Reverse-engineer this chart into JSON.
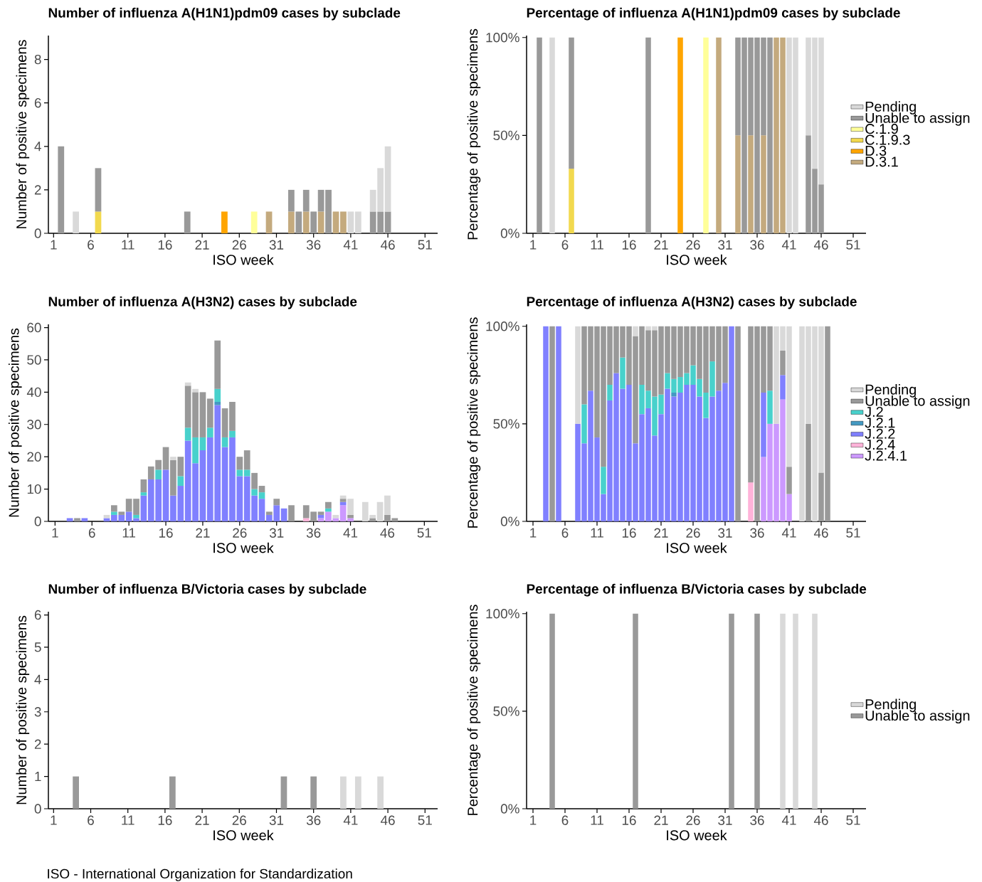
{
  "chart_data": [
    {
      "type": "bar",
      "title": "Number of influenza A(H1N1)pdm09 cases by subclade",
      "xlabel": "ISO week",
      "ylabel": "Number of positive specimens",
      "stacked": true,
      "xlim": [
        0.3,
        52.7
      ],
      "xticks": [
        1,
        6,
        11,
        16,
        21,
        26,
        31,
        36,
        41,
        46,
        51
      ],
      "ylim": [
        0,
        9.1
      ],
      "yticks": [
        0,
        2,
        4,
        6,
        8
      ],
      "x": [
        2,
        4,
        7,
        19,
        24,
        28,
        30,
        33,
        34,
        35,
        36,
        37,
        38,
        39,
        40,
        41,
        42,
        44,
        45,
        46
      ],
      "series": [
        {
          "color": "#c4aa7e",
          "values": [
            null,
            null,
            null,
            null,
            null,
            null,
            1,
            1,
            null,
            1,
            null,
            1,
            null,
            1,
            1,
            null,
            null,
            null,
            null,
            null
          ]
        },
        {
          "color": "#ffa500",
          "values": [
            null,
            null,
            null,
            null,
            1,
            null,
            null,
            null,
            null,
            null,
            null,
            null,
            null,
            null,
            null,
            null,
            null,
            null,
            null,
            null
          ]
        },
        {
          "color": "#f2d94e",
          "values": [
            null,
            null,
            1,
            null,
            null,
            null,
            null,
            null,
            null,
            null,
            null,
            null,
            null,
            null,
            null,
            null,
            null,
            null,
            null,
            null
          ]
        },
        {
          "color": "#ffff99",
          "values": [
            null,
            null,
            null,
            null,
            null,
            1,
            null,
            null,
            null,
            null,
            null,
            null,
            null,
            null,
            null,
            null,
            null,
            null,
            null,
            null
          ]
        },
        {
          "color": "#999999",
          "values": [
            4,
            null,
            2,
            1,
            null,
            null,
            null,
            1,
            1,
            1,
            1,
            1,
            2,
            null,
            null,
            null,
            null,
            1,
            1,
            1
          ]
        },
        {
          "color": "#d9d9d9",
          "values": [
            null,
            1,
            null,
            null,
            null,
            null,
            null,
            null,
            null,
            null,
            null,
            null,
            null,
            null,
            null,
            1,
            1,
            1,
            2,
            3
          ]
        }
      ]
    },
    {
      "type": "bar",
      "title": "Percentage of influenza A(H1N1)pdm09 cases by subclade",
      "xlabel": "ISO week",
      "ylabel": "Percentage of positive specimens",
      "stacked": true,
      "legend": "right",
      "xlim": [
        0,
        53
      ],
      "xticks": [
        1,
        6,
        11,
        16,
        21,
        26,
        31,
        36,
        41,
        46,
        51
      ],
      "ylim": [
        0,
        101
      ],
      "yticks": [
        {
          "value": 0,
          "label": "0%"
        },
        {
          "value": 50,
          "label": "50%"
        },
        {
          "value": 100,
          "label": "100%"
        }
      ],
      "x": [
        2,
        4,
        7,
        19,
        24,
        28,
        30,
        33,
        34,
        35,
        36,
        37,
        38,
        39,
        40,
        41,
        42,
        44,
        45,
        46
      ],
      "series": [
        {
          "name": "D.3.1",
          "color": "#c4aa7e",
          "values": [
            null,
            null,
            null,
            null,
            null,
            null,
            100,
            50,
            null,
            50,
            null,
            50,
            null,
            100,
            100,
            null,
            null,
            null,
            null,
            null
          ]
        },
        {
          "name": "D.3",
          "color": "#ffa500",
          "values": [
            null,
            null,
            null,
            null,
            100,
            null,
            null,
            null,
            null,
            null,
            null,
            null,
            null,
            null,
            null,
            null,
            null,
            null,
            null,
            null
          ]
        },
        {
          "name": "C.1.9.3",
          "color": "#f2d94e",
          "values": [
            null,
            null,
            33,
            null,
            null,
            null,
            null,
            null,
            null,
            null,
            null,
            null,
            null,
            null,
            null,
            null,
            null,
            null,
            null,
            null
          ]
        },
        {
          "name": "C.1.9",
          "color": "#ffff99",
          "values": [
            null,
            null,
            null,
            null,
            null,
            100,
            null,
            null,
            null,
            null,
            null,
            null,
            null,
            null,
            null,
            null,
            null,
            null,
            null,
            null
          ]
        },
        {
          "name": "Unable to assign",
          "color": "#999999",
          "values": [
            100,
            null,
            67,
            100,
            null,
            null,
            null,
            50,
            100,
            50,
            100,
            50,
            100,
            null,
            null,
            null,
            null,
            50,
            33,
            25
          ]
        },
        {
          "name": "Pending",
          "color": "#d9d9d9",
          "values": [
            null,
            100,
            null,
            null,
            null,
            null,
            null,
            null,
            null,
            null,
            null,
            null,
            null,
            null,
            null,
            100,
            100,
            50,
            67,
            75
          ]
        }
      ]
    },
    {
      "type": "bar",
      "title": "Number of influenza A(H3N2) cases by subclade",
      "xlabel": "ISO week",
      "ylabel": "Number of positive specimens",
      "stacked": true,
      "xlim": [
        0.1,
        52.8
      ],
      "xticks": [
        1,
        6,
        11,
        16,
        21,
        26,
        31,
        36,
        41,
        46,
        51
      ],
      "ylim": [
        0,
        61
      ],
      "yticks": [
        0,
        10,
        20,
        30,
        40,
        50,
        60
      ],
      "x": [
        3,
        4,
        5,
        8,
        9,
        10,
        11,
        12,
        13,
        14,
        15,
        16,
        17,
        18,
        19,
        20,
        21,
        22,
        23,
        24,
        25,
        26,
        27,
        28,
        29,
        30,
        31,
        32,
        33,
        35,
        36,
        37,
        38,
        39,
        40,
        41,
        43,
        44,
        45,
        46,
        47
      ],
      "series": [
        {
          "color": "#cc99ff",
          "values": [
            null,
            null,
            null,
            null,
            null,
            null,
            null,
            null,
            null,
            null,
            null,
            null,
            null,
            null,
            null,
            null,
            null,
            null,
            null,
            null,
            null,
            null,
            null,
            null,
            null,
            null,
            null,
            null,
            null,
            null,
            null,
            1,
            3,
            1,
            5,
            1,
            null,
            null,
            null,
            null,
            null
          ]
        },
        {
          "color": "#ffb3d9",
          "values": [
            null,
            null,
            null,
            null,
            null,
            null,
            null,
            null,
            null,
            null,
            null,
            null,
            null,
            null,
            null,
            null,
            null,
            null,
            null,
            null,
            null,
            null,
            null,
            null,
            null,
            null,
            null,
            null,
            null,
            1,
            null,
            null,
            null,
            null,
            null,
            null,
            null,
            null,
            null,
            null,
            null
          ]
        },
        {
          "color": "#8080ff",
          "values": [
            1,
            null,
            1,
            1,
            2,
            2,
            3,
            1,
            8,
            13,
            13,
            16,
            8,
            11,
            25,
            18,
            22,
            26,
            36,
            23,
            26,
            14,
            14,
            8,
            7,
            2,
            5,
            4,
            null,
            null,
            null,
            1,
            null,
            null,
            1,
            null,
            null,
            null,
            null,
            null,
            null
          ]
        },
        {
          "color": "#4499c2",
          "values": [
            null,
            null,
            null,
            null,
            null,
            null,
            null,
            null,
            null,
            null,
            null,
            null,
            null,
            null,
            null,
            null,
            null,
            null,
            1,
            null,
            null,
            null,
            null,
            null,
            null,
            null,
            null,
            null,
            null,
            null,
            null,
            null,
            null,
            null,
            null,
            null,
            null,
            null,
            null,
            null,
            null
          ]
        },
        {
          "color": "#48d1cc",
          "values": [
            null,
            null,
            null,
            null,
            1,
            null,
            null,
            1,
            1,
            null,
            3,
            null,
            null,
            3,
            4,
            8,
            4,
            3,
            4,
            3,
            2,
            2,
            2,
            2,
            2,
            null,
            null,
            null,
            null,
            null,
            null,
            null,
            1,
            null,
            null,
            null,
            null,
            null,
            null,
            null,
            null
          ]
        },
        {
          "color": "#999999",
          "values": [
            null,
            1,
            null,
            null,
            2,
            1,
            4,
            5,
            4,
            4,
            3,
            7,
            11,
            6,
            13,
            14,
            14,
            9,
            15,
            9,
            9,
            4,
            6,
            5,
            2,
            1,
            2,
            null,
            5,
            4,
            3,
            1,
            2,
            null,
            1,
            1,
            null,
            1,
            null,
            2,
            1
          ]
        },
        {
          "color": "#d9d9d9",
          "values": [
            null,
            null,
            null,
            1,
            null,
            null,
            null,
            null,
            null,
            null,
            null,
            null,
            1,
            null,
            1,
            1,
            null,
            null,
            null,
            null,
            null,
            null,
            null,
            null,
            null,
            null,
            null,
            null,
            null,
            null,
            null,
            null,
            null,
            1,
            1,
            5,
            6,
            1,
            6,
            6,
            null
          ]
        }
      ]
    },
    {
      "type": "bar",
      "title": "Percentage of influenza A(H3N2) cases by subclade",
      "xlabel": "ISO week",
      "ylabel": "Percentage of positive specimens",
      "stacked": true,
      "legend": "right",
      "xlim": [
        0,
        53
      ],
      "xticks": [
        1,
        6,
        11,
        16,
        21,
        26,
        31,
        36,
        41,
        46,
        51
      ],
      "ylim": [
        0,
        101
      ],
      "yticks": [
        {
          "value": 0,
          "label": "0%"
        },
        {
          "value": 50,
          "label": "50%"
        },
        {
          "value": 100,
          "label": "100%"
        }
      ],
      "x": [
        3,
        4,
        5,
        8,
        9,
        10,
        11,
        12,
        13,
        14,
        15,
        16,
        17,
        18,
        19,
        20,
        21,
        22,
        23,
        24,
        25,
        26,
        27,
        28,
        29,
        30,
        31,
        32,
        33,
        35,
        36,
        37,
        38,
        39,
        40,
        41,
        43,
        44,
        45,
        46,
        47
      ],
      "series": [
        {
          "name": "J.2.4.1",
          "color": "#cc99ff",
          "values": [
            null,
            null,
            null,
            null,
            null,
            null,
            null,
            null,
            null,
            null,
            null,
            null,
            null,
            null,
            null,
            null,
            null,
            null,
            null,
            null,
            null,
            null,
            null,
            null,
            null,
            null,
            null,
            null,
            null,
            null,
            null,
            33,
            50,
            50,
            62.5,
            14,
            null,
            null,
            null,
            null,
            null
          ]
        },
        {
          "name": "J.2.4",
          "color": "#ffb3d9",
          "values": [
            null,
            null,
            null,
            null,
            null,
            null,
            null,
            null,
            null,
            null,
            null,
            null,
            null,
            null,
            null,
            null,
            null,
            null,
            null,
            null,
            null,
            null,
            null,
            null,
            null,
            null,
            null,
            null,
            null,
            20,
            null,
            null,
            null,
            null,
            null,
            null,
            null,
            null,
            null,
            null,
            null
          ]
        },
        {
          "name": "J.2.2",
          "color": "#8080ff",
          "values": [
            100,
            null,
            100,
            50,
            40,
            67,
            43,
            14,
            62,
            76,
            68,
            70,
            40,
            55,
            58,
            44,
            55,
            68,
            64,
            66,
            70,
            70,
            64,
            53,
            64,
            67,
            71,
            100,
            null,
            null,
            null,
            33,
            null,
            null,
            12.5,
            null,
            null,
            null,
            null,
            null,
            null
          ]
        },
        {
          "name": "J.2.1",
          "color": "#4499c2",
          "values": [
            null,
            null,
            null,
            null,
            null,
            null,
            null,
            null,
            null,
            null,
            null,
            null,
            null,
            null,
            null,
            null,
            null,
            null,
            2,
            null,
            null,
            null,
            null,
            null,
            null,
            null,
            null,
            null,
            null,
            null,
            null,
            null,
            null,
            null,
            null,
            null,
            null,
            null,
            null,
            null,
            null
          ]
        },
        {
          "name": "J.2",
          "color": "#48d1cc",
          "values": [
            null,
            null,
            null,
            null,
            20,
            null,
            null,
            14,
            8,
            null,
            16,
            null,
            null,
            15,
            9,
            20,
            10,
            8,
            7,
            8,
            6,
            10,
            9,
            13,
            18,
            null,
            null,
            null,
            null,
            null,
            null,
            null,
            17,
            null,
            null,
            null,
            null,
            null,
            null,
            null,
            null
          ]
        },
        {
          "name": "Unable to assign",
          "color": "#999999",
          "values": [
            null,
            100,
            null,
            null,
            40,
            33,
            57,
            72,
            30,
            24,
            16,
            30,
            55,
            30,
            31,
            34,
            35,
            24,
            27,
            26,
            24,
            20,
            27,
            34,
            18,
            33,
            29,
            null,
            100,
            80,
            100,
            34,
            33,
            null,
            12.5,
            14,
            null,
            50,
            null,
            25,
            100
          ]
        },
        {
          "name": "Pending",
          "color": "#d9d9d9",
          "values": [
            null,
            null,
            null,
            50,
            null,
            null,
            null,
            null,
            null,
            null,
            null,
            null,
            5,
            null,
            2,
            2,
            null,
            null,
            null,
            null,
            null,
            null,
            null,
            null,
            null,
            null,
            null,
            null,
            null,
            null,
            null,
            null,
            null,
            50,
            12.5,
            72,
            100,
            50,
            100,
            75,
            null
          ]
        }
      ]
    },
    {
      "type": "bar",
      "title": "Number of influenza B/Victoria cases by subclade",
      "xlabel": "ISO week",
      "ylabel": "Number of positive specimens",
      "stacked": true,
      "xlim": [
        0.3,
        52.7
      ],
      "xticks": [
        1,
        6,
        11,
        16,
        21,
        26,
        31,
        36,
        41,
        46,
        51
      ],
      "ylim": [
        0,
        6.1
      ],
      "yticks": [
        0,
        1,
        2,
        3,
        4,
        5,
        6
      ],
      "annotations": [
        "ISO - International Organization for Standardization"
      ],
      "x": [
        4,
        17,
        32,
        36,
        40,
        42,
        45
      ],
      "series": [
        {
          "color": "#999999",
          "values": [
            1,
            1,
            1,
            1,
            null,
            null,
            null
          ]
        },
        {
          "color": "#d9d9d9",
          "values": [
            null,
            null,
            null,
            null,
            1,
            1,
            1
          ]
        }
      ]
    },
    {
      "type": "bar",
      "title": "Percentage of influenza B/Victoria cases by subclade",
      "xlabel": "ISO week",
      "ylabel": "Percentage of positive specimens",
      "stacked": true,
      "legend": "right",
      "xlim": [
        0,
        53
      ],
      "xticks": [
        1,
        6,
        11,
        16,
        21,
        26,
        31,
        36,
        41,
        46,
        51
      ],
      "ylim": [
        0,
        101
      ],
      "yticks": [
        {
          "value": 0,
          "label": "0%"
        },
        {
          "value": 50,
          "label": "50%"
        },
        {
          "value": 100,
          "label": "100%"
        }
      ],
      "x": [
        4,
        17,
        32,
        36,
        40,
        42,
        45
      ],
      "series": [
        {
          "name": "Unable to assign",
          "color": "#999999",
          "values": [
            100,
            100,
            100,
            100,
            null,
            null,
            null
          ]
        },
        {
          "name": "Pending",
          "color": "#d9d9d9",
          "values": [
            null,
            null,
            null,
            null,
            100,
            100,
            100
          ]
        }
      ]
    }
  ]
}
